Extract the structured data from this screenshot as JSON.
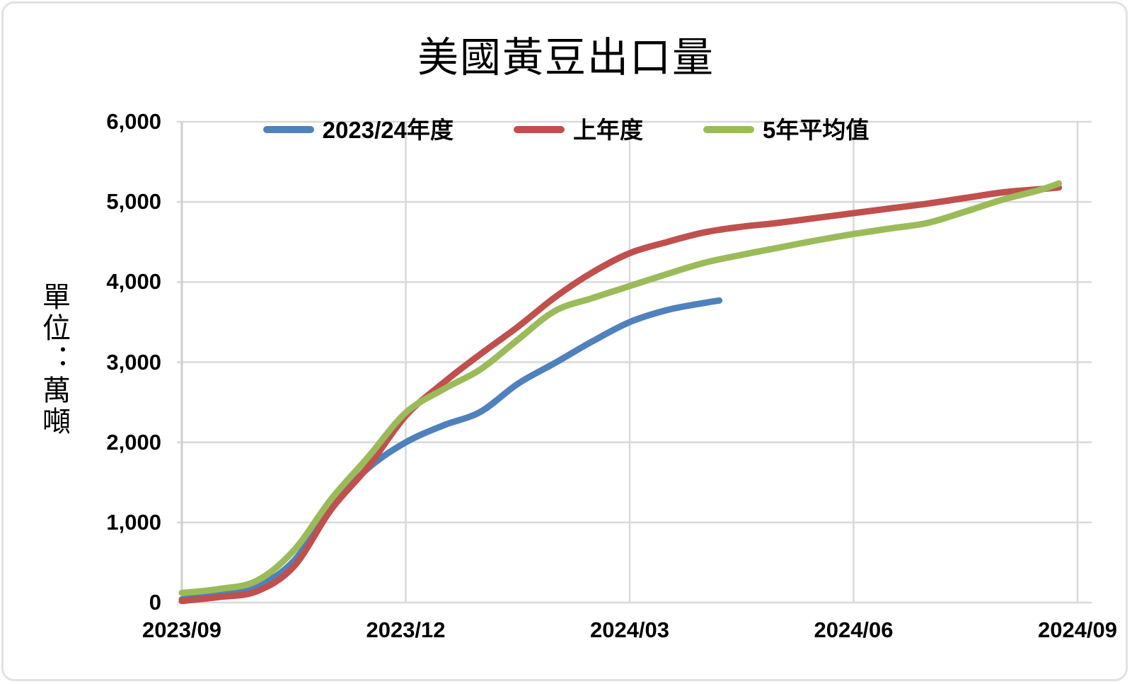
{
  "title": "美國黃豆出口量",
  "y_axis": {
    "title": "單位：萬噸",
    "ticks": [
      {
        "label": "0",
        "value": 0
      },
      {
        "label": "1,000",
        "value": 1000
      },
      {
        "label": "2,000",
        "value": 2000
      },
      {
        "label": "3,000",
        "value": 3000
      },
      {
        "label": "4,000",
        "value": 4000
      },
      {
        "label": "5,000",
        "value": 5000
      },
      {
        "label": "6,000",
        "value": 6000
      }
    ]
  },
  "x_axis": {
    "ticks": [
      {
        "label": "2023/09",
        "month_offset": 0
      },
      {
        "label": "2023/12",
        "month_offset": 3
      },
      {
        "label": "2024/03",
        "month_offset": 6
      },
      {
        "label": "2024/06",
        "month_offset": 9
      },
      {
        "label": "2024/09",
        "month_offset": 12
      }
    ]
  },
  "legend": [
    {
      "label": "2023/24年度",
      "color": "#4F81BD"
    },
    {
      "label": "上年度",
      "color": "#C0504D"
    },
    {
      "label": "5年平均值",
      "color": "#9BBB59"
    }
  ],
  "chart_data": {
    "type": "line",
    "title": "美國黃豆出口量",
    "ylabel": "單位：萬噸",
    "ylim": [
      0,
      6000
    ],
    "y_step": 1000,
    "grid": true,
    "legend_position": "top",
    "x_unit": "months since 2023/09 (half-month sampling)",
    "x_tick_labels": [
      "2023/09",
      "2023/12",
      "2024/03",
      "2024/06",
      "2024/09"
    ],
    "x_tick_positions": [
      0,
      3,
      6,
      9,
      12
    ],
    "series": [
      {
        "name": "2023/24年度",
        "color": "#4F81BD",
        "x": [
          0,
          0.5,
          1,
          1.5,
          2,
          2.5,
          3,
          3.5,
          4,
          4.5,
          5,
          5.5,
          6,
          6.5,
          7,
          7.2
        ],
        "values": [
          40,
          100,
          200,
          520,
          1190,
          1680,
          2000,
          2210,
          2380,
          2730,
          2990,
          3260,
          3500,
          3650,
          3740,
          3770
        ]
      },
      {
        "name": "上年度",
        "color": "#C0504D",
        "x": [
          0,
          0.5,
          1,
          1.5,
          2,
          2.5,
          3,
          3.5,
          4,
          4.5,
          5,
          5.5,
          6,
          6.5,
          7,
          7.5,
          8,
          8.5,
          9,
          9.5,
          10,
          10.5,
          11,
          11.5,
          11.75
        ],
        "values": [
          20,
          70,
          140,
          450,
          1160,
          1700,
          2330,
          2740,
          3100,
          3440,
          3810,
          4120,
          4360,
          4500,
          4620,
          4690,
          4740,
          4800,
          4860,
          4920,
          4980,
          5050,
          5120,
          5160,
          5180
        ]
      },
      {
        "name": "5年平均值",
        "color": "#9BBB59",
        "x": [
          0,
          0.5,
          1,
          1.5,
          2,
          2.5,
          3,
          3.5,
          4,
          4.5,
          5,
          5.5,
          6,
          6.5,
          7,
          7.5,
          8,
          8.5,
          9,
          9.5,
          10,
          10.5,
          11,
          11.5,
          11.75
        ],
        "values": [
          120,
          170,
          270,
          650,
          1290,
          1820,
          2370,
          2660,
          2910,
          3280,
          3640,
          3800,
          3950,
          4100,
          4240,
          4340,
          4430,
          4520,
          4600,
          4670,
          4740,
          4880,
          5030,
          5150,
          5230
        ]
      }
    ]
  }
}
